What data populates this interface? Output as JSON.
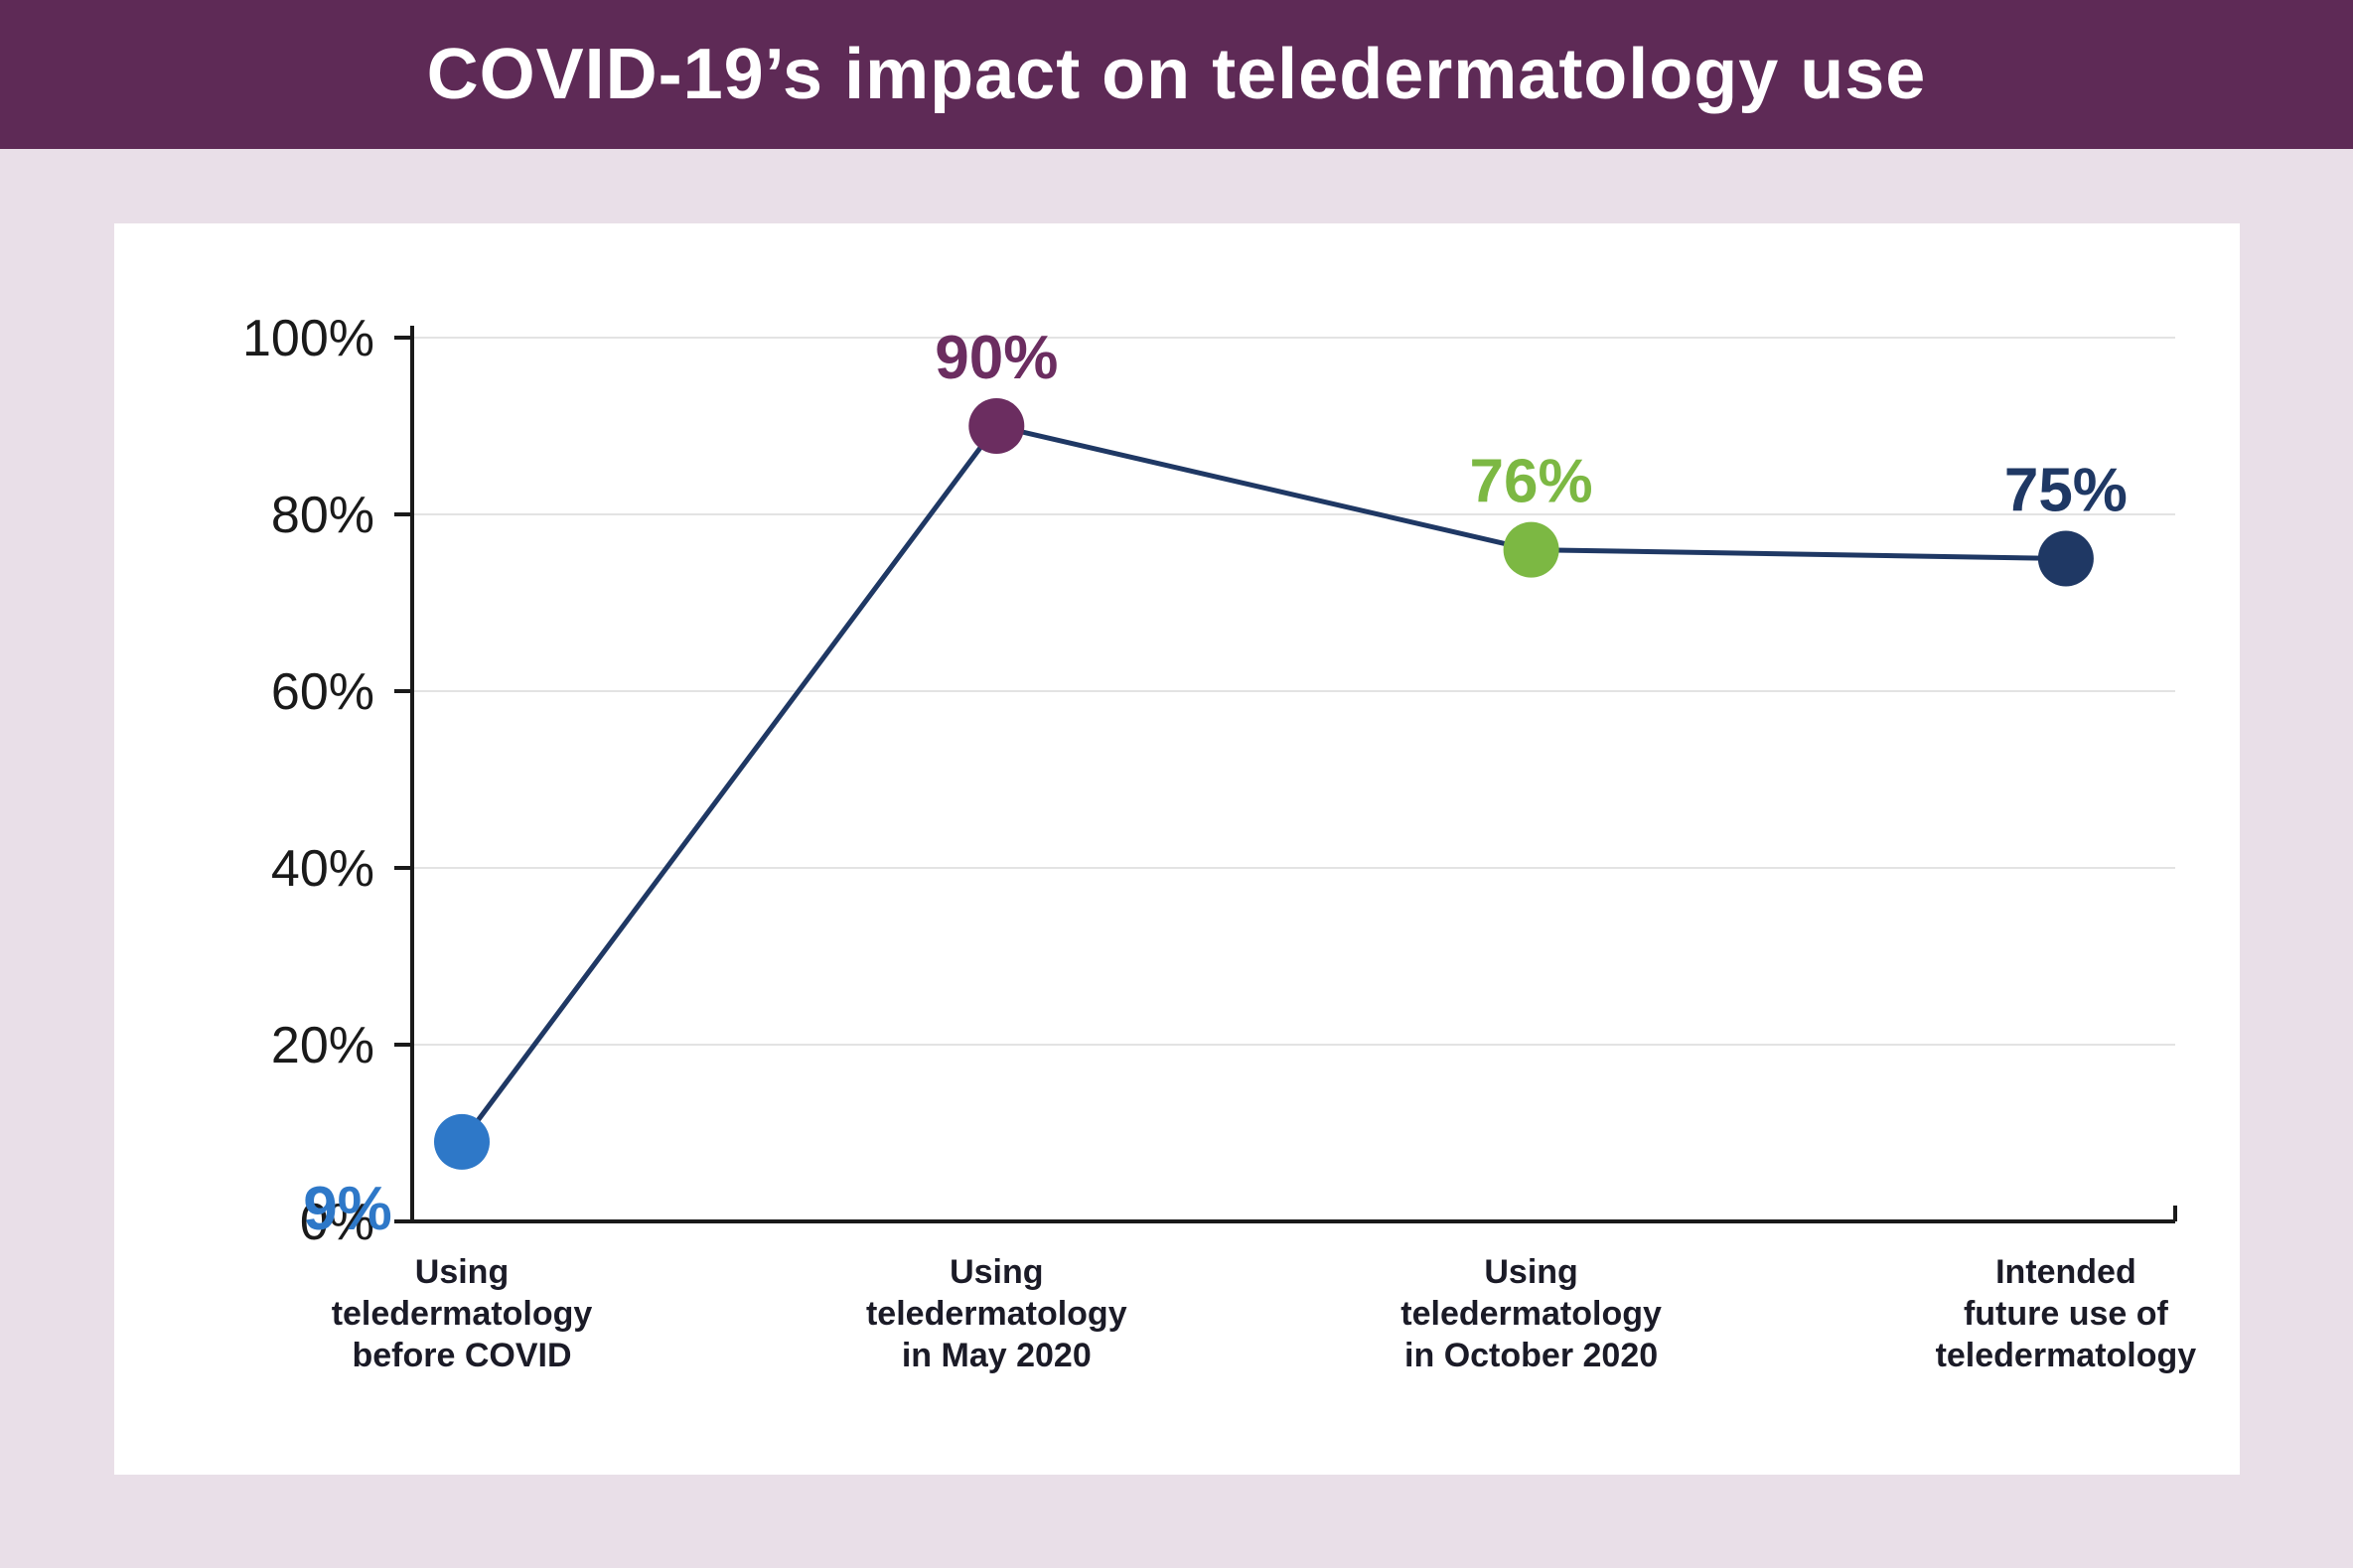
{
  "header": {
    "title": "COVID-19’s impact on teledermatology use",
    "background_color": "#5e2a56",
    "text_color": "#ffffff"
  },
  "page": {
    "background_color": "#e9dfe8",
    "card_color": "#ffffff"
  },
  "chart_data": {
    "type": "line",
    "title": "COVID-19’s impact on teledermatology use",
    "categories": [
      "Using\nteledermatology\nbefore COVID",
      "Using\nteledermatology\nin May 2020",
      "Using\nteledermatology\nin October 2020",
      "Intended\nfuture use of\nteledermatology"
    ],
    "values": [
      9,
      90,
      76,
      75
    ],
    "labels": [
      "9%",
      "90%",
      "76%",
      "75%"
    ],
    "label_positions": [
      "below",
      "above",
      "above",
      "above"
    ],
    "point_colors": [
      "#2e78c8",
      "#6b2d60",
      "#7cb843",
      "#1f3864"
    ],
    "line_color": "#1f3864",
    "xlabel": "",
    "ylabel": "",
    "ylim": [
      0,
      100
    ],
    "yticks": [
      0,
      20,
      40,
      60,
      80,
      100
    ],
    "ytick_labels": [
      "0%",
      "20%",
      "40%",
      "60%",
      "80%",
      "100%"
    ],
    "grid": true,
    "grid_color": "#e3e3e3",
    "axis_color": "#1a1a1a",
    "xtick_text_color": "#1b1b27",
    "legend": "none"
  }
}
